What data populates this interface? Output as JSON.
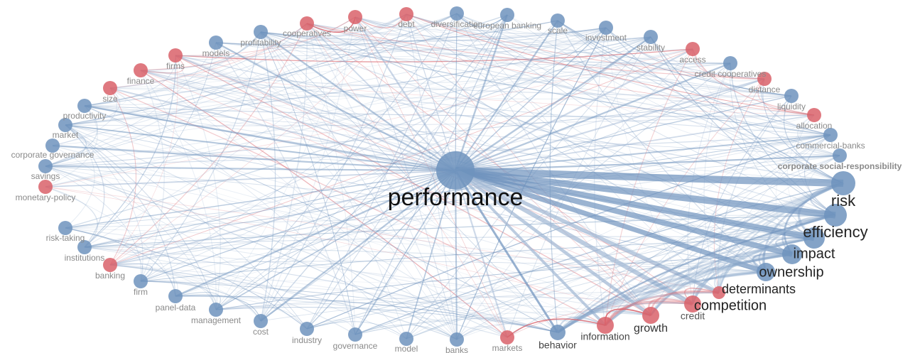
{
  "nodes": [
    {
      "label": "performance",
      "color": "#6f93bd"
    },
    {
      "label": "risk",
      "color": "#6f93bd"
    },
    {
      "label": "efficiency",
      "color": "#6f93bd"
    },
    {
      "label": "impact",
      "color": "#6f93bd"
    },
    {
      "label": "ownership",
      "color": "#6f93bd"
    },
    {
      "label": "determinants",
      "color": "#6f93bd"
    },
    {
      "label": "competition",
      "color": "#d9626a"
    },
    {
      "label": "credit",
      "color": "#d9626a"
    },
    {
      "label": "growth",
      "color": "#d9626a"
    },
    {
      "label": "information",
      "color": "#d9626a"
    },
    {
      "label": "behavior",
      "color": "#6f93bd"
    },
    {
      "label": "markets",
      "color": "#d9626a"
    },
    {
      "label": "banks",
      "color": "#6f93bd"
    },
    {
      "label": "model",
      "color": "#6f93bd"
    },
    {
      "label": "governance",
      "color": "#6f93bd"
    },
    {
      "label": "industry",
      "color": "#6f93bd"
    },
    {
      "label": "cost",
      "color": "#6f93bd"
    },
    {
      "label": "management",
      "color": "#6f93bd"
    },
    {
      "label": "panel-data",
      "color": "#6f93bd"
    },
    {
      "label": "firm",
      "color": "#6f93bd"
    },
    {
      "label": "banking",
      "color": "#d9626a"
    },
    {
      "label": "institutions",
      "color": "#6f93bd"
    },
    {
      "label": "risk-taking",
      "color": "#6f93bd"
    },
    {
      "label": "monetary-policy",
      "color": "#d9626a"
    },
    {
      "label": "savings",
      "color": "#6f93bd"
    },
    {
      "label": "corporate governance",
      "color": "#6f93bd"
    },
    {
      "label": "market",
      "color": "#6f93bd"
    },
    {
      "label": "productivity",
      "color": "#6f93bd"
    },
    {
      "label": "size",
      "color": "#d9626a"
    },
    {
      "label": "finance",
      "color": "#d9626a"
    },
    {
      "label": "firms",
      "color": "#d9626a"
    },
    {
      "label": "models",
      "color": "#6f93bd"
    },
    {
      "label": "profitability",
      "color": "#6f93bd"
    },
    {
      "label": "cooperatives",
      "color": "#d9626a"
    },
    {
      "label": "power",
      "color": "#d9626a"
    },
    {
      "label": "debt",
      "color": "#d9626a"
    },
    {
      "label": "diversification",
      "color": "#6f93bd"
    },
    {
      "label": "european banking",
      "color": "#6f93bd"
    },
    {
      "label": "scale",
      "color": "#6f93bd"
    },
    {
      "label": "investment",
      "color": "#6f93bd"
    },
    {
      "label": "stability",
      "color": "#6f93bd"
    },
    {
      "label": "access",
      "color": "#d9626a"
    },
    {
      "label": "credit cooperatives",
      "color": "#6f93bd"
    },
    {
      "label": "distance",
      "color": "#d9626a"
    },
    {
      "label": "liquidity",
      "color": "#6f93bd"
    },
    {
      "label": "allocation",
      "color": "#d9626a"
    },
    {
      "label": "commercial-banks",
      "color": "#6f93bd"
    },
    {
      "label": "corporate social-responsibility",
      "color": "#6f93bd"
    }
  ]
}
